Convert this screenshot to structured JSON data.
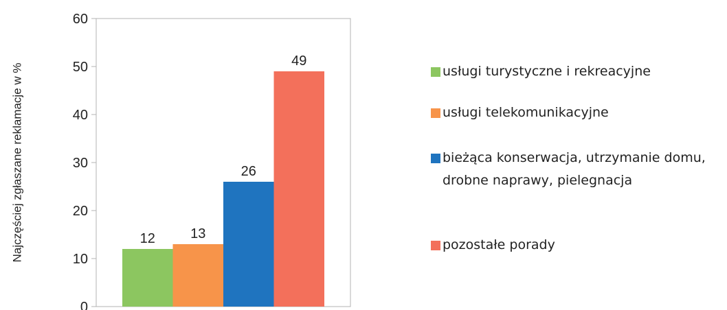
{
  "chart_data": {
    "type": "bar",
    "ylabel": "Najczęściej zgłaszane reklamacje w %",
    "categories": [
      null
    ],
    "series": [
      {
        "name": "usługi turystyczne i rekreacyjne",
        "color": "#8cc660",
        "values": [
          12
        ]
      },
      {
        "name": "usługi telekomunikacyjne",
        "color": "#f7944a",
        "values": [
          13
        ]
      },
      {
        "name": "bieżąca konserwacja, utrzymanie domu, drobne naprawy, piele­gnacja",
        "color": "#1f74bf",
        "values": [
          26
        ]
      },
      {
        "name": "pozostałe porady",
        "color": "#f3705b",
        "values": [
          49
        ]
      }
    ],
    "ylim": [
      0,
      60
    ],
    "yticks": [
      0,
      10,
      20,
      30,
      40,
      50,
      60
    ],
    "grid": false,
    "legend": "right"
  }
}
